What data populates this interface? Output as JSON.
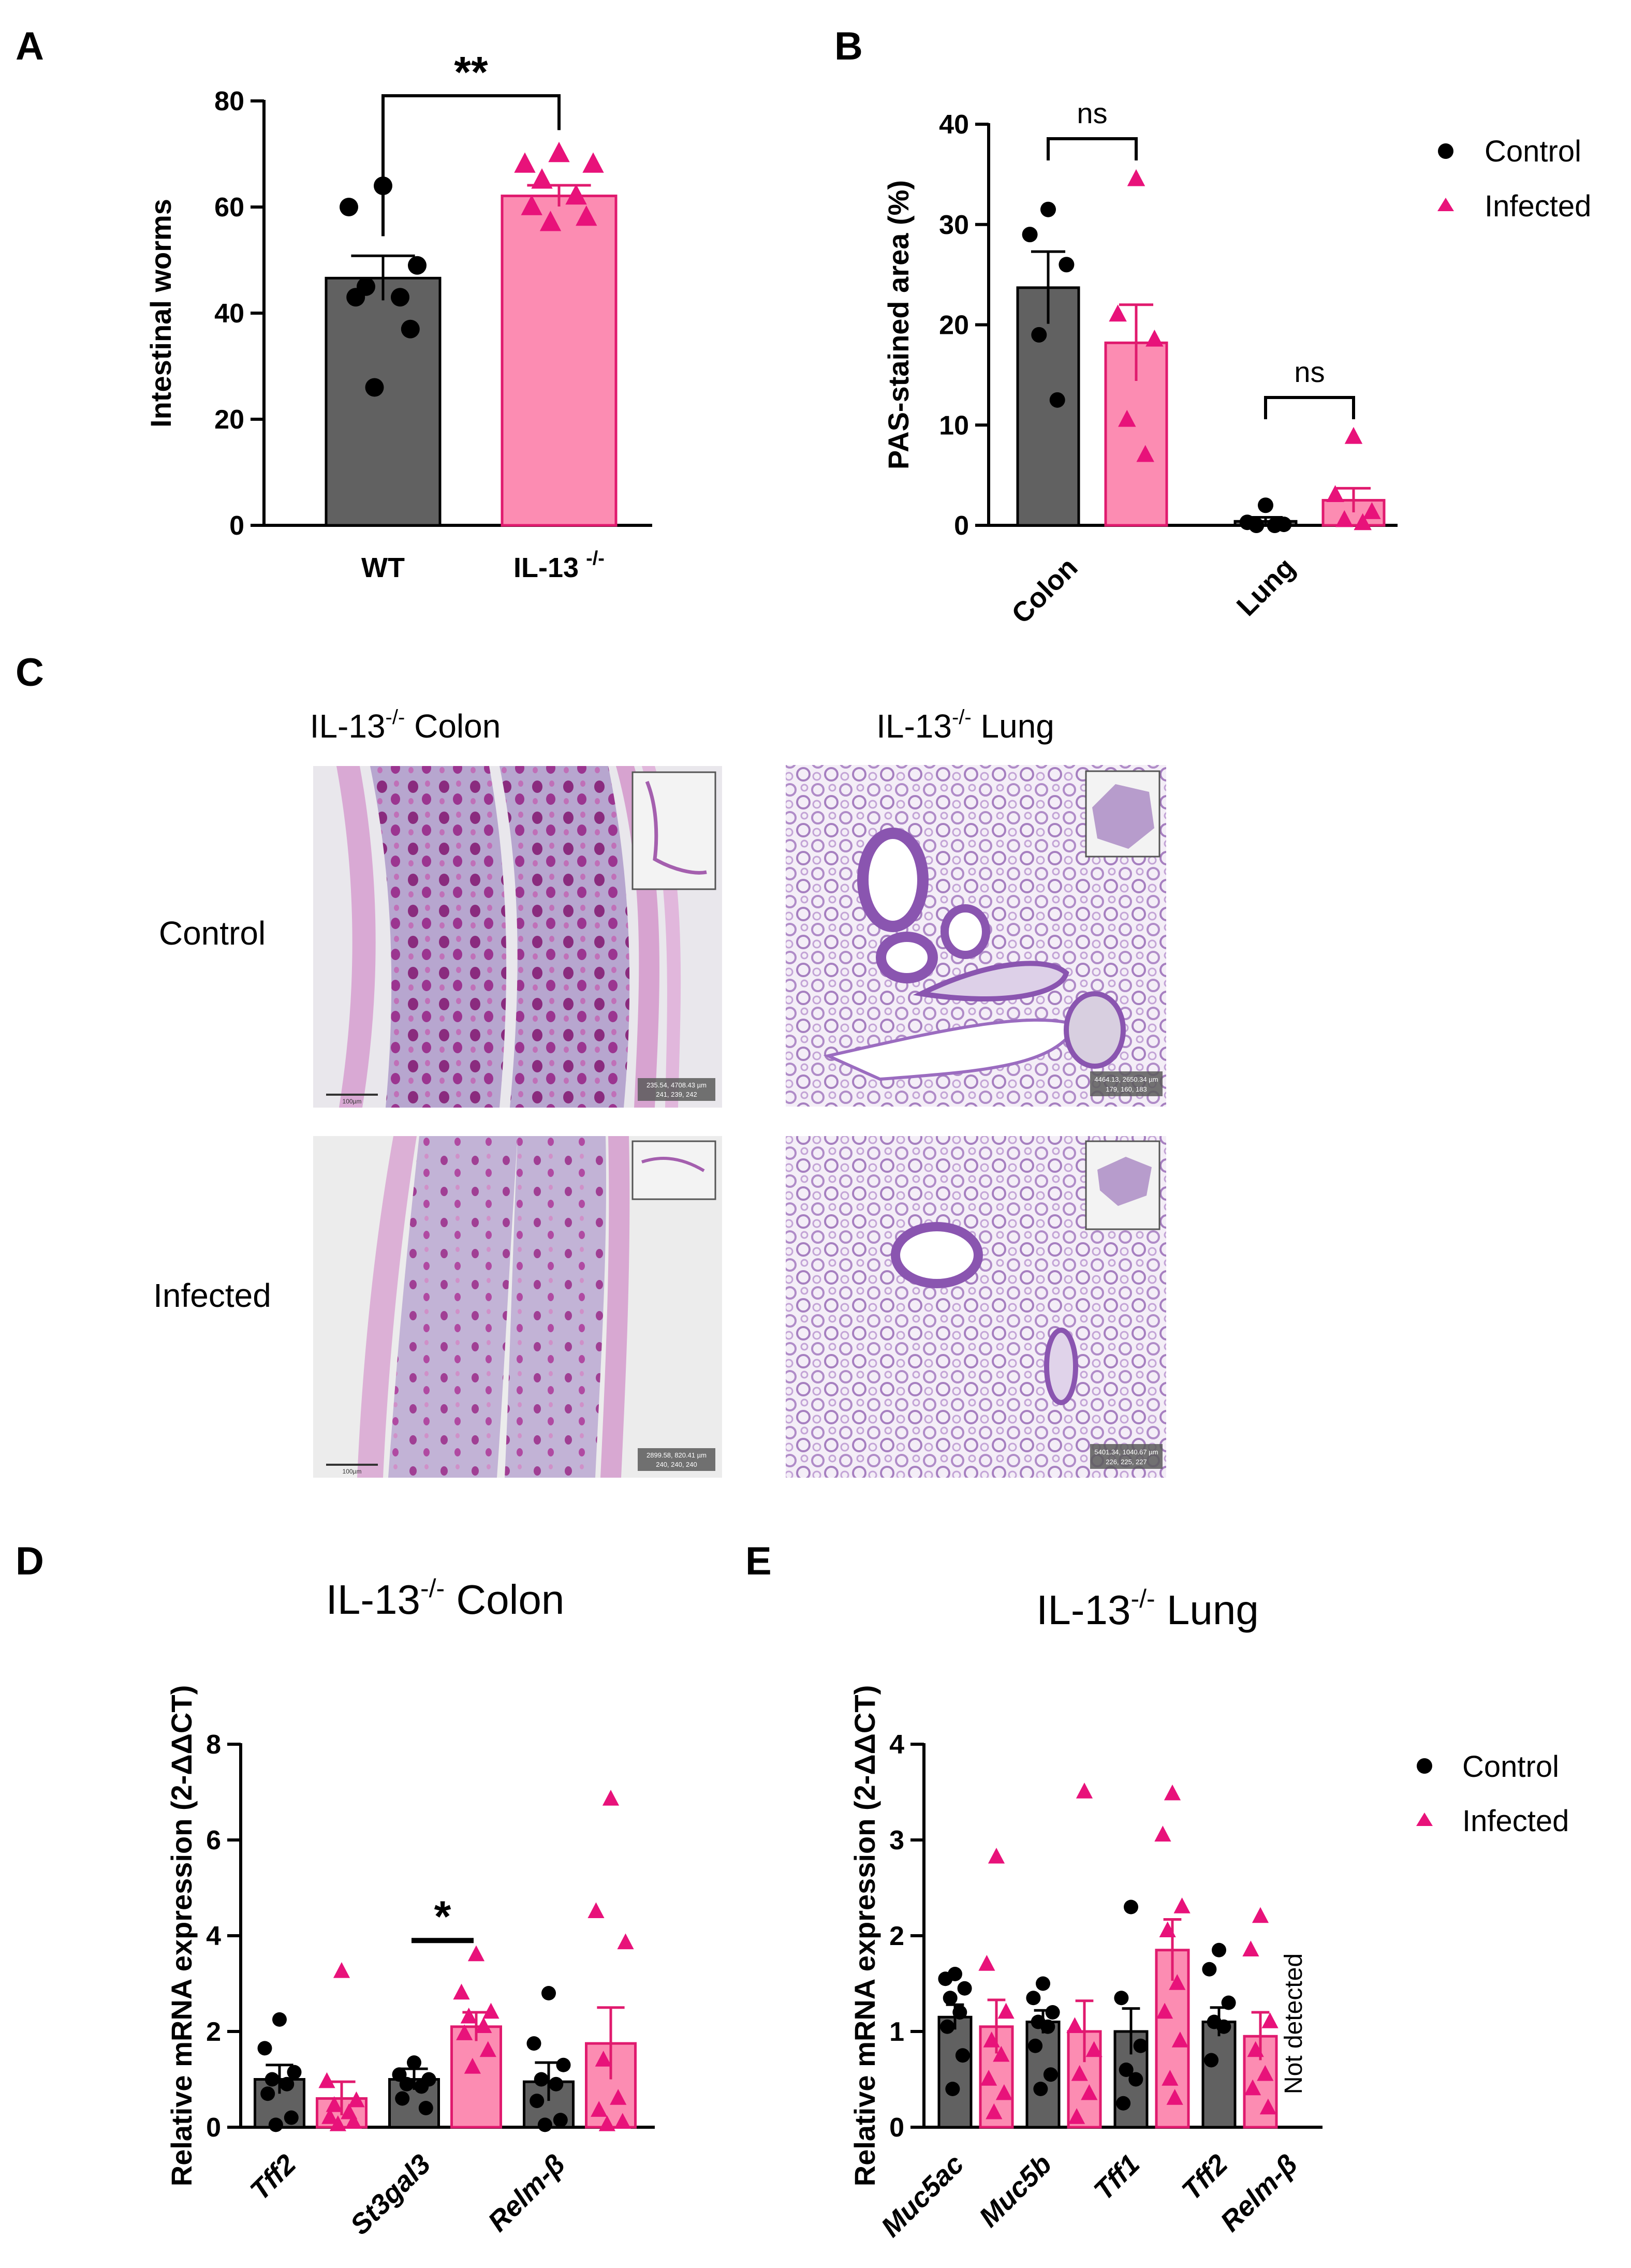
{
  "panels": {
    "a": "A",
    "b": "B",
    "c": "C",
    "d": "D",
    "e": "E"
  },
  "colors": {
    "control_bar": "#616161",
    "control_point": "#000000",
    "infected_fill": "#fc8cb2",
    "infected_point": "#e8127a",
    "infected_stroke": "#e01a6e"
  },
  "legend": {
    "control": "Control",
    "infected": "Infected"
  },
  "histology": {
    "col_colon": "IL-13",
    "col_colon_sup": "-/-",
    "col_colon_rest": " Colon",
    "col_lung": "IL-13",
    "col_lung_sup": "-/-",
    "col_lung_rest": " Lung",
    "row_control": "Control",
    "row_infected": "Infected",
    "scale_bar_label": "100µm",
    "readout_ctrl_colon": [
      "235.54, 4708.43 µm",
      "241, 239, 242"
    ],
    "readout_ctrl_lung": [
      "4464.13, 2650.34 µm",
      "179, 160, 183"
    ],
    "readout_inf_colon": [
      "2899.58, 820.41 µm",
      "240, 240, 240"
    ],
    "readout_inf_lung": [
      "5401.34, 1040.67 µm",
      "226, 225, 227"
    ],
    "image_kind": "PAS-stained tissue section"
  },
  "chart_data": [
    {
      "panel": "A",
      "type": "bar",
      "ylabel": "Intestinal worms",
      "ylim": [
        0,
        80
      ],
      "yticks": [
        0,
        20,
        40,
        60,
        80
      ],
      "categories": [
        "WT",
        "IL-13"
      ],
      "category_sup": [
        "",
        "-/-"
      ],
      "series": [
        {
          "group": "control",
          "mean": 46.6,
          "sem": 4.2,
          "points": [
            64,
            60,
            49,
            45,
            43,
            43,
            37,
            26
          ]
        },
        {
          "group": "infected",
          "mean": 62.1,
          "sem": 2.0,
          "points": [
            70,
            68,
            68,
            65,
            62,
            60,
            58,
            57
          ]
        }
      ],
      "significance": [
        {
          "between": [
            0,
            1
          ],
          "label": "**"
        }
      ]
    },
    {
      "panel": "B",
      "type": "bar",
      "ylabel": "PAS-stained area (%)",
      "ylim": [
        0,
        40
      ],
      "yticks": [
        0,
        10,
        20,
        30,
        40
      ],
      "categories": [
        "Colon",
        "Lung"
      ],
      "series": [
        {
          "name": "Control",
          "marker": "circle",
          "means": [
            23.7,
            0.4
          ],
          "sems": [
            3.6,
            0.4
          ],
          "points": [
            [
              31.5,
              29.0,
              26.0,
              19.0,
              12.5
            ],
            [
              2.0,
              0.3,
              0.1,
              0,
              0
            ]
          ]
        },
        {
          "name": "Infected",
          "marker": "triangle",
          "means": [
            18.2,
            2.5
          ],
          "sems": [
            3.8,
            1.2
          ],
          "points": [
            [
              34.5,
              21.0,
              18.5,
              10.5,
              7.0
            ],
            [
              8.8,
              3.0,
              1.3,
              0.5,
              0.2
            ]
          ]
        }
      ],
      "significance": [
        {
          "category": 0,
          "label": "ns"
        },
        {
          "category": 1,
          "label": "ns"
        }
      ]
    },
    {
      "panel": "D",
      "type": "bar",
      "title": "IL-13",
      "title_sup": "-/-",
      "title_rest": " Colon",
      "ylabel": "Relative mRNA expression (2-ΔΔCT)",
      "ylim": [
        0,
        8
      ],
      "yticks": [
        0,
        2,
        4,
        6,
        8
      ],
      "categories": [
        "Tff2",
        "St3gal3",
        "Relm-β"
      ],
      "series": [
        {
          "name": "Control",
          "marker": "circle",
          "means": [
            1.0,
            1.0,
            0.95
          ],
          "sems": [
            0.3,
            0.22,
            0.4
          ],
          "points": [
            [
              2.25,
              1.65,
              1.15,
              1.0,
              0.9,
              0.7,
              0.2,
              0.05
            ],
            [
              1.35,
              1.1,
              1.0,
              0.9,
              0.85,
              0.6,
              0.4
            ],
            [
              2.8,
              1.75,
              1.3,
              1.0,
              0.9,
              0.55,
              0.15,
              0.05
            ]
          ]
        },
        {
          "name": "Infected",
          "marker": "triangle",
          "means": [
            0.6,
            2.1,
            1.75
          ],
          "sems": [
            0.35,
            0.3,
            0.75
          ],
          "points": [
            [
              3.25,
              0.95,
              0.55,
              0.45,
              0.3,
              0.2,
              0.1,
              0.05
            ],
            [
              3.6,
              2.8,
              2.4,
              2.3,
              2.1,
              1.95,
              1.6,
              1.25
            ],
            [
              6.85,
              4.5,
              3.85,
              1.4,
              0.6,
              0.35,
              0.1,
              0.05
            ]
          ]
        }
      ],
      "significance": [
        {
          "category": 1,
          "label": "*"
        }
      ]
    },
    {
      "panel": "E",
      "type": "bar",
      "title": "IL-13",
      "title_sup": "-/-",
      "title_rest": " Lung",
      "ylabel": "Relative mRNA expression (2-ΔΔCT)",
      "ylim": [
        0,
        4
      ],
      "yticks": [
        0,
        1,
        2,
        3,
        4
      ],
      "categories": [
        "Muc5ac",
        "Muc5b",
        "Tff1",
        "Tff2",
        "Relm-β"
      ],
      "series": [
        {
          "name": "Control",
          "marker": "circle",
          "means": [
            1.15,
            1.1,
            1.0,
            1.1,
            null
          ],
          "sems": [
            0.13,
            0.12,
            0.24,
            0.15,
            null
          ],
          "points": [
            [
              1.6,
              1.55,
              1.45,
              1.35,
              1.2,
              1.05,
              0.75,
              0.4
            ],
            [
              1.5,
              1.35,
              1.2,
              1.1,
              1.05,
              0.85,
              0.55,
              0.4
            ],
            [
              2.3,
              1.35,
              0.85,
              0.6,
              0.5,
              0.25
            ],
            [
              1.85,
              1.65,
              1.3,
              1.1,
              1.05,
              0.7
            ]
          ]
        },
        {
          "name": "Infected",
          "marker": "triangle",
          "means": [
            1.05,
            1.0,
            1.85,
            0.95,
            null
          ],
          "sems": [
            0.28,
            0.32,
            0.32,
            0.25,
            null
          ],
          "points": [
            [
              2.82,
              1.7,
              1.2,
              0.9,
              0.75,
              0.5,
              0.35,
              0.15
            ],
            [
              3.5,
              1.05,
              0.8,
              0.55,
              0.35,
              0.1
            ],
            [
              3.48,
              3.05,
              2.3,
              2.05,
              1.5,
              1.2,
              0.9,
              0.5,
              0.3
            ],
            [
              2.2,
              1.85,
              1.1,
              0.8,
              0.55,
              0.4,
              0.2
            ]
          ]
        }
      ],
      "annotations": [
        {
          "category": 4,
          "text": "Not detected"
        }
      ]
    }
  ]
}
